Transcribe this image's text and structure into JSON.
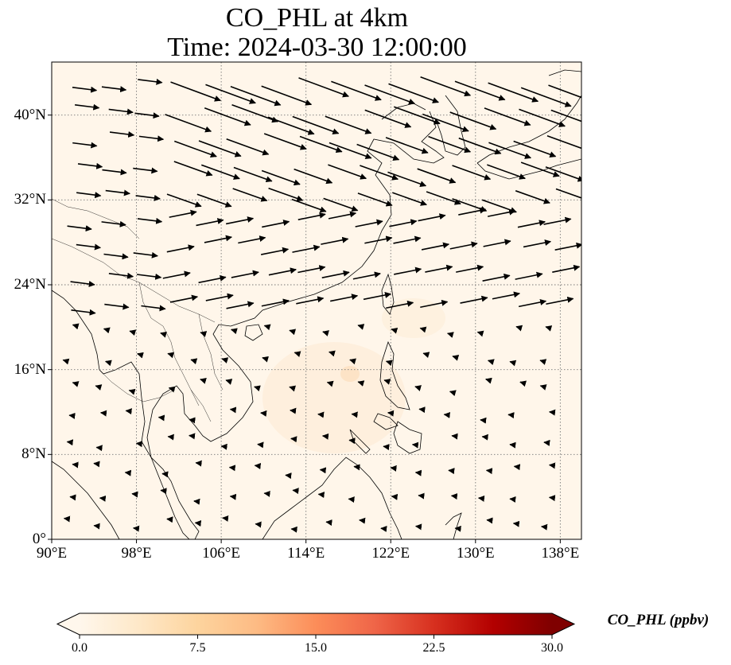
{
  "title": "CO_PHL at 4km",
  "subtitle": "Time: 2024-03-30 12:00:00",
  "map": {
    "lon_range": [
      90,
      140
    ],
    "lat_range": [
      0,
      45
    ],
    "lon_ticks": [
      90,
      98,
      106,
      114,
      122,
      130,
      138
    ],
    "lon_tick_labels": [
      "90°E",
      "98°E",
      "106°E",
      "114°E",
      "122°E",
      "130°E",
      "138°E"
    ],
    "lat_ticks": [
      0,
      8,
      16,
      24,
      32,
      40
    ],
    "lat_tick_labels": [
      "0°",
      "8°N",
      "16°N",
      "24°N",
      "32°N",
      "40°N"
    ],
    "gridlines": "dotted",
    "background_color": "#fff6ea",
    "coastline_color": "#000000",
    "vector_color": "#000000"
  },
  "colorbar": {
    "label": "CO_PHL (ppbv)",
    "min": 0.0,
    "max": 30.0,
    "ticks": [
      0.0,
      7.5,
      15.0,
      22.5,
      30.0
    ],
    "tick_labels": [
      "0.0",
      "7.5",
      "15.0",
      "22.5",
      "30.0"
    ],
    "colormap": "OrRd",
    "colors": [
      "#fff7ec",
      "#fee8c8",
      "#fdd49e",
      "#fdbb84",
      "#fc8d59",
      "#ef6548",
      "#d7301f",
      "#b30000",
      "#7f0000"
    ],
    "extend": "both"
  }
}
